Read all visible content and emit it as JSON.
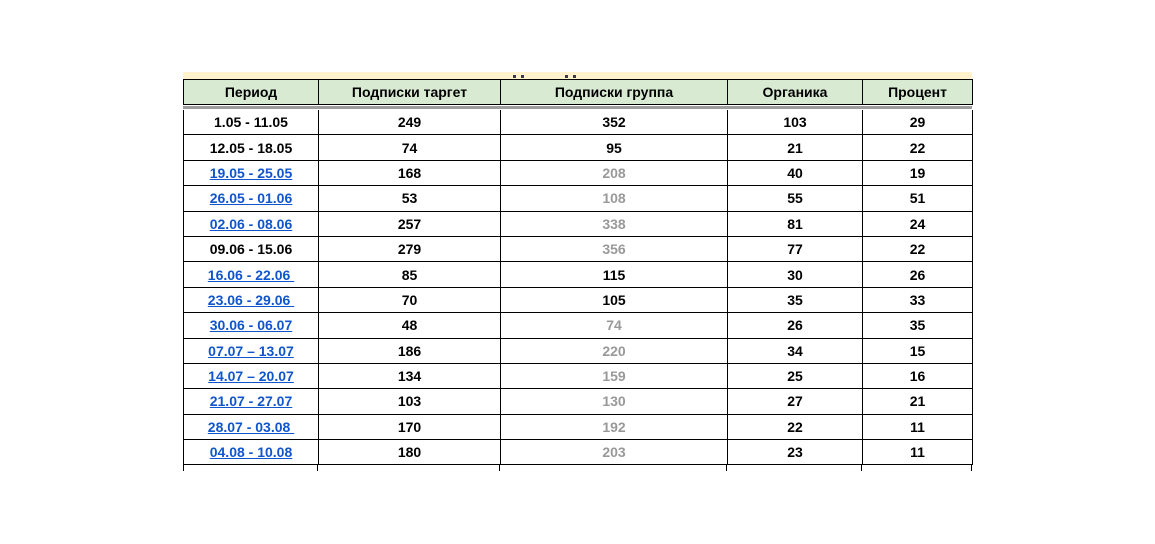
{
  "colors": {
    "header_bg": "#d9ead3",
    "strip_bg": "#fff2cc",
    "link": "#1155cc",
    "muted_text": "#999999",
    "border": "#000000",
    "divider": "#9e9e9e"
  },
  "table": {
    "header": {
      "columns": [
        "Период",
        "Подписки таргет",
        "Подписки группа",
        "Органика",
        "Процент"
      ]
    },
    "rows": [
      {
        "period": "1.05 - 11.05",
        "period_is_link": false,
        "target": "249",
        "group": "352",
        "group_muted": false,
        "organic": "103",
        "percent": "29"
      },
      {
        "period": "12.05 - 18.05",
        "period_is_link": false,
        "target": "74",
        "group": "95",
        "group_muted": false,
        "organic": "21",
        "percent": "22"
      },
      {
        "period": "19.05 - 25.05",
        "period_is_link": true,
        "target": "168",
        "group": "208",
        "group_muted": true,
        "organic": "40",
        "percent": "19"
      },
      {
        "period": "26.05 - 01.06",
        "period_is_link": true,
        "target": "53",
        "group": "108",
        "group_muted": true,
        "organic": "55",
        "percent": "51"
      },
      {
        "period": "02.06 - 08.06",
        "period_is_link": true,
        "target": "257",
        "group": "338",
        "group_muted": true,
        "organic": "81",
        "percent": "24"
      },
      {
        "period": "09.06 - 15.06",
        "period_is_link": false,
        "target": "279",
        "group": "356",
        "group_muted": true,
        "organic": "77",
        "percent": "22"
      },
      {
        "period": "16.06 - 22.06 ",
        "period_is_link": true,
        "target": "85",
        "group": "115",
        "group_muted": false,
        "organic": "30",
        "percent": "26"
      },
      {
        "period": "23.06 - 29.06 ",
        "period_is_link": true,
        "target": "70",
        "group": "105",
        "group_muted": false,
        "organic": "35",
        "percent": "33"
      },
      {
        "period": "30.06 - 06.07",
        "period_is_link": true,
        "target": "48",
        "group": "74",
        "group_muted": true,
        "organic": "26",
        "percent": "35"
      },
      {
        "period": "07.07 – 13.07",
        "period_is_link": true,
        "target": "186",
        "group": "220",
        "group_muted": true,
        "organic": "34",
        "percent": "15"
      },
      {
        "period": "14.07 – 20.07",
        "period_is_link": true,
        "target": "134",
        "group": "159",
        "group_muted": true,
        "organic": "25",
        "percent": "16"
      },
      {
        "period": "21.07 - 27.07",
        "period_is_link": true,
        "target": "103",
        "group": "130",
        "group_muted": true,
        "organic": "27",
        "percent": "21"
      },
      {
        "period": "28.07 - 03.08 ",
        "period_is_link": true,
        "target": "170",
        "group": "192",
        "group_muted": true,
        "organic": "22",
        "percent": "11"
      },
      {
        "period": "04.08 - 10.08",
        "period_is_link": true,
        "target": "180",
        "group": "203",
        "group_muted": true,
        "organic": "23",
        "percent": "11"
      }
    ]
  }
}
